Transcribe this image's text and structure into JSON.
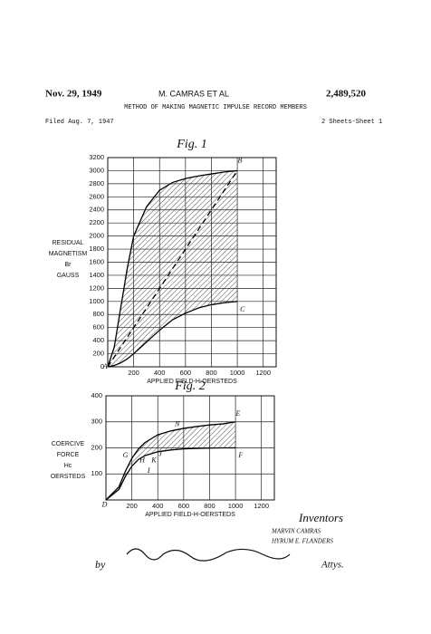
{
  "header": {
    "date": "Nov. 29, 1949",
    "inventor": "M. CAMRAS ET AL",
    "number": "2,489,520",
    "title": "METHOD OF MAKING MAGNETIC IMPULSE RECORD MEMBERS",
    "filed": "Filed Aug. 7, 1947",
    "sheets": "2 Sheets-Sheet 1"
  },
  "chart_data": [
    {
      "type": "line",
      "title": "Fig. 1",
      "xlabel": "APPLIED FIELD-H-OERSTEDS",
      "ylabel": [
        "RESIDUAL",
        "MAGNETISM",
        "Br",
        "GAUSS"
      ],
      "xlim": [
        0,
        1300
      ],
      "ylim": [
        0,
        3200
      ],
      "grid": true,
      "fill_between": true,
      "color": "#000000",
      "xticks": [
        200,
        400,
        600,
        800,
        1000,
        1200
      ],
      "yticks": [
        0,
        200,
        400,
        600,
        800,
        1000,
        1200,
        1400,
        1600,
        1800,
        2000,
        2200,
        2400,
        2600,
        2800,
        3000,
        3200
      ],
      "series": [
        {
          "x": [
            0,
            50,
            100,
            150,
            200,
            300,
            400,
            500,
            600,
            700,
            800,
            900,
            1000
          ],
          "values": [
            0,
            300,
            900,
            1500,
            2000,
            2450,
            2700,
            2820,
            2880,
            2920,
            2950,
            2980,
            3000
          ]
        },
        {
          "x": [
            0,
            50,
            100,
            150,
            200,
            300,
            400,
            500,
            600,
            700,
            800,
            900,
            1000
          ],
          "values": [
            0,
            20,
            60,
            120,
            200,
            380,
            560,
            720,
            820,
            900,
            950,
            980,
            1000
          ]
        },
        {
          "x": [
            0,
            1000
          ],
          "values": [
            0,
            3000
          ],
          "dashed": true
        }
      ],
      "annotations": [
        {
          "text": "A",
          "x": -20,
          "y": 0
        },
        {
          "text": "B",
          "x": 1020,
          "y": 3150
        },
        {
          "text": "C",
          "x": 1040,
          "y": 870
        }
      ]
    },
    {
      "type": "line",
      "title": "Fig. 2",
      "xlabel": "APPLIED FIELD-H-OERSTEDS",
      "ylabel": [
        "COERCIVE",
        "FORCE",
        "Hc",
        "OERSTEDS"
      ],
      "xlim": [
        0,
        1300
      ],
      "ylim": [
        0,
        400
      ],
      "grid": true,
      "fill_between": true,
      "color": "#000000",
      "xticks": [
        200,
        400,
        600,
        800,
        1000,
        1200
      ],
      "yticks": [
        100,
        200,
        300,
        400
      ],
      "series": [
        {
          "x": [
            0,
            100,
            150,
            200,
            250,
            300,
            400,
            500,
            600,
            700,
            800,
            900,
            1000
          ],
          "values": [
            0,
            50,
            110,
            160,
            195,
            220,
            250,
            265,
            275,
            282,
            288,
            292,
            300
          ]
        },
        {
          "x": [
            0,
            100,
            150,
            200,
            250,
            300,
            400,
            500,
            600,
            700,
            800,
            900,
            1000
          ],
          "values": [
            0,
            40,
            90,
            130,
            155,
            170,
            185,
            192,
            196,
            198,
            199,
            200,
            200
          ]
        }
      ],
      "annotations": [
        {
          "text": "D",
          "x": -10,
          "y": -20
        },
        {
          "text": "E",
          "x": 1020,
          "y": 330
        },
        {
          "text": "F",
          "x": 1040,
          "y": 170
        },
        {
          "text": "G",
          "x": 150,
          "y": 170
        },
        {
          "text": "H",
          "x": 280,
          "y": 150
        },
        {
          "text": "I",
          "x": 330,
          "y": 110
        },
        {
          "text": "J",
          "x": 420,
          "y": 175
        },
        {
          "text": "K",
          "x": 370,
          "y": 150
        },
        {
          "text": "N",
          "x": 550,
          "y": 290
        }
      ]
    }
  ],
  "footer": {
    "inventors": "Inventors",
    "name1": "MARVIN CAMRAS",
    "name2": "HYRUM E. FLANDERS",
    "by": "by",
    "attys": "Attys."
  }
}
